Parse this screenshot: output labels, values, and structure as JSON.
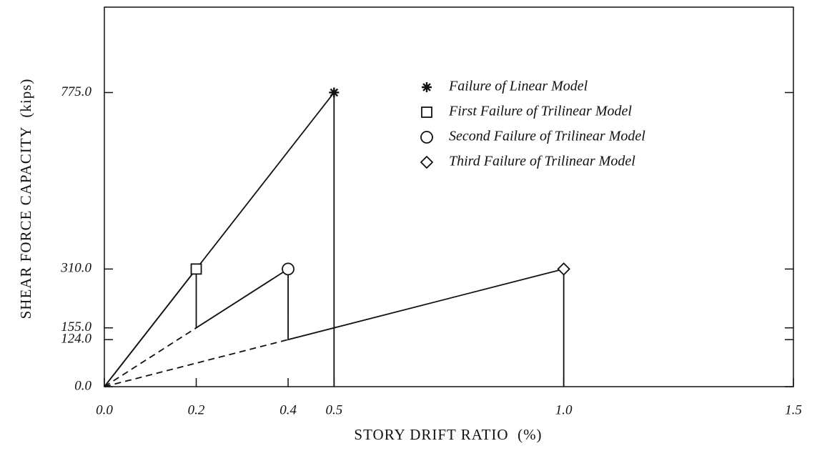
{
  "chart_data": {
    "type": "line",
    "x_label": "STORY DRIFT RATIO  (%)",
    "y_label": "SHEAR FORCE CAPACITY  (kips)",
    "xlim": [
      0,
      1.5
    ],
    "ylim": [
      0,
      1000
    ],
    "xticks": [
      {
        "value": 0,
        "label": "0.0"
      },
      {
        "value": 0.2,
        "label": "0.2"
      },
      {
        "value": 0.4,
        "label": "0.4"
      },
      {
        "value": 0.5,
        "label": "0.5"
      },
      {
        "value": 1.0,
        "label": "1.0"
      },
      {
        "value": 1.5,
        "label": "1.5"
      }
    ],
    "yticks": [
      {
        "value": 0,
        "label": "0.0"
      },
      {
        "value": 124,
        "label": "124.0"
      },
      {
        "value": 155,
        "label": "155.0"
      },
      {
        "value": 310,
        "label": "310.0"
      },
      {
        "value": 775,
        "label": "775.0"
      }
    ],
    "color": "#111111",
    "lines": [
      {
        "style": "solid",
        "x": [
          0,
          0.5,
          0.5
        ],
        "values": [
          0,
          775,
          0
        ]
      },
      {
        "style": "solid",
        "x": [
          0,
          0.2,
          0.2,
          0.4,
          0.4,
          1.0,
          1.0
        ],
        "values": [
          0,
          310,
          155,
          310,
          124,
          310,
          0
        ]
      },
      {
        "style": "dashed",
        "x": [
          0,
          0.2
        ],
        "values": [
          0,
          155
        ]
      },
      {
        "style": "dashed",
        "x": [
          0,
          0.4
        ],
        "values": [
          0,
          124
        ]
      }
    ],
    "series": [
      {
        "name": "Failure of Linear Model",
        "marker": "star",
        "x": [
          0.5
        ],
        "values": [
          775
        ]
      },
      {
        "name": "First Failure of Trilinear Model",
        "marker": "square",
        "x": [
          0.2
        ],
        "values": [
          310
        ]
      },
      {
        "name": "Second Failure of Trilinear Model",
        "marker": "circle",
        "x": [
          0.4
        ],
        "values": [
          310
        ]
      },
      {
        "name": "Third Failure of Trilinear Model",
        "marker": "diamond",
        "x": [
          1.0
        ],
        "values": [
          310
        ]
      }
    ]
  }
}
